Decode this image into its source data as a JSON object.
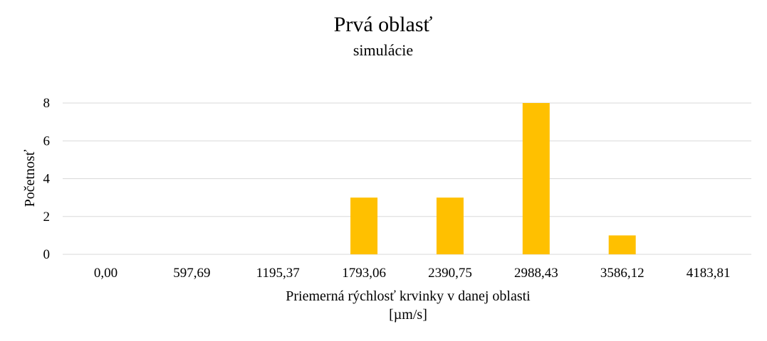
{
  "chart_data": {
    "type": "bar",
    "title": "Prvá oblasť",
    "subtitle": "simulácie",
    "xlabel": "Priemerná rýchlosť krvinky v danej oblasti",
    "xlabel_unit": "[µm/s]",
    "ylabel": "Početnosť",
    "categories": [
      "0,00",
      "597,69",
      "1195,37",
      "1793,06",
      "2390,75",
      "2988,43",
      "3586,12",
      "4183,81"
    ],
    "values": [
      0,
      0,
      0,
      3,
      3,
      8,
      1,
      0
    ],
    "ylim": [
      0,
      8
    ],
    "yticks": [
      0,
      2,
      4,
      6,
      8
    ],
    "grid": true,
    "legend": "none",
    "bar_color": "#FFC000"
  }
}
